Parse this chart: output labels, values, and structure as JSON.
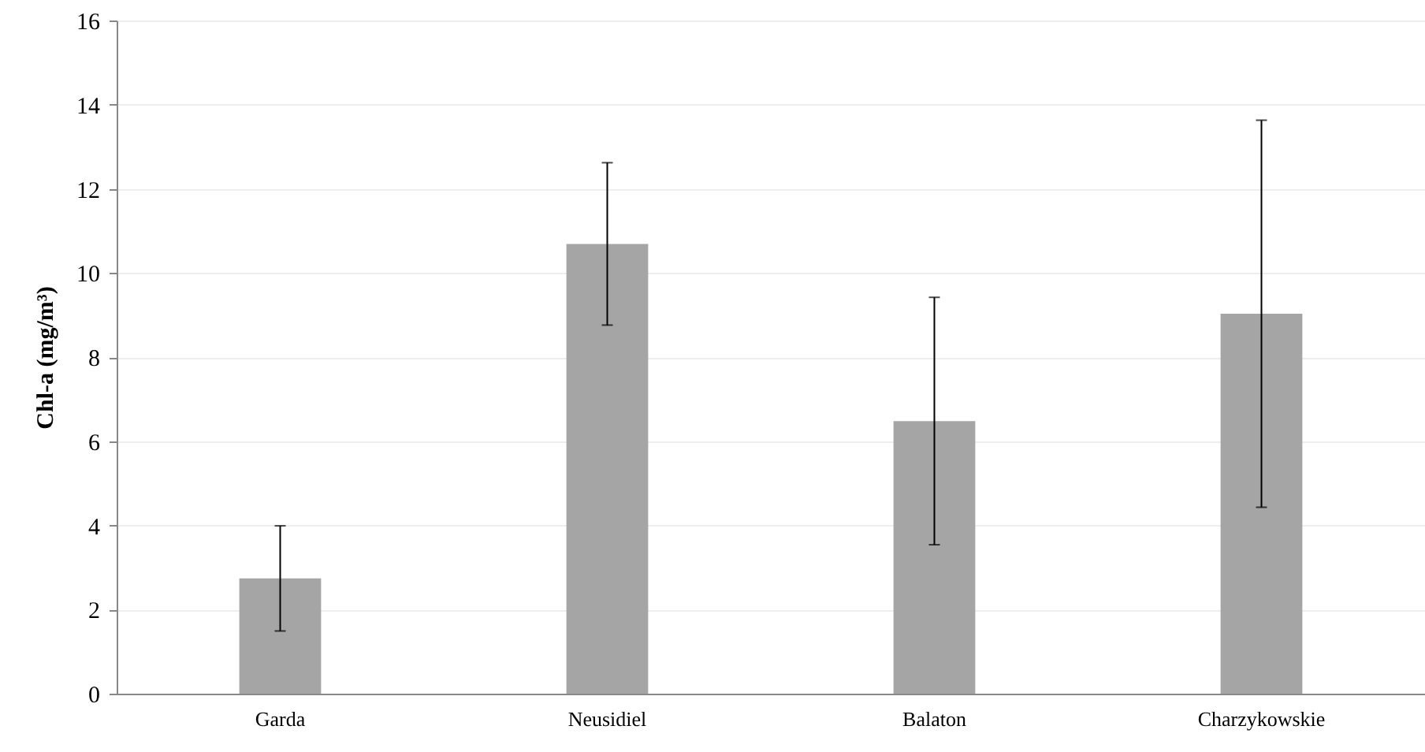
{
  "chart_data": {
    "type": "bar",
    "ylabel": "Chl-a (mg/m³)",
    "categories": [
      "Garda",
      "Neusidiel",
      "Balaton",
      "Charzykowskie"
    ],
    "values": [
      2.74,
      10.69,
      6.48,
      9.03
    ],
    "errors": [
      1.25,
      1.93,
      2.94,
      4.6
    ],
    "color": "#a5a5a5",
    "ylim": [
      0,
      16
    ],
    "yticks": [
      0,
      2,
      4,
      6,
      8,
      10,
      12,
      14,
      16
    ],
    "grid": "y"
  }
}
